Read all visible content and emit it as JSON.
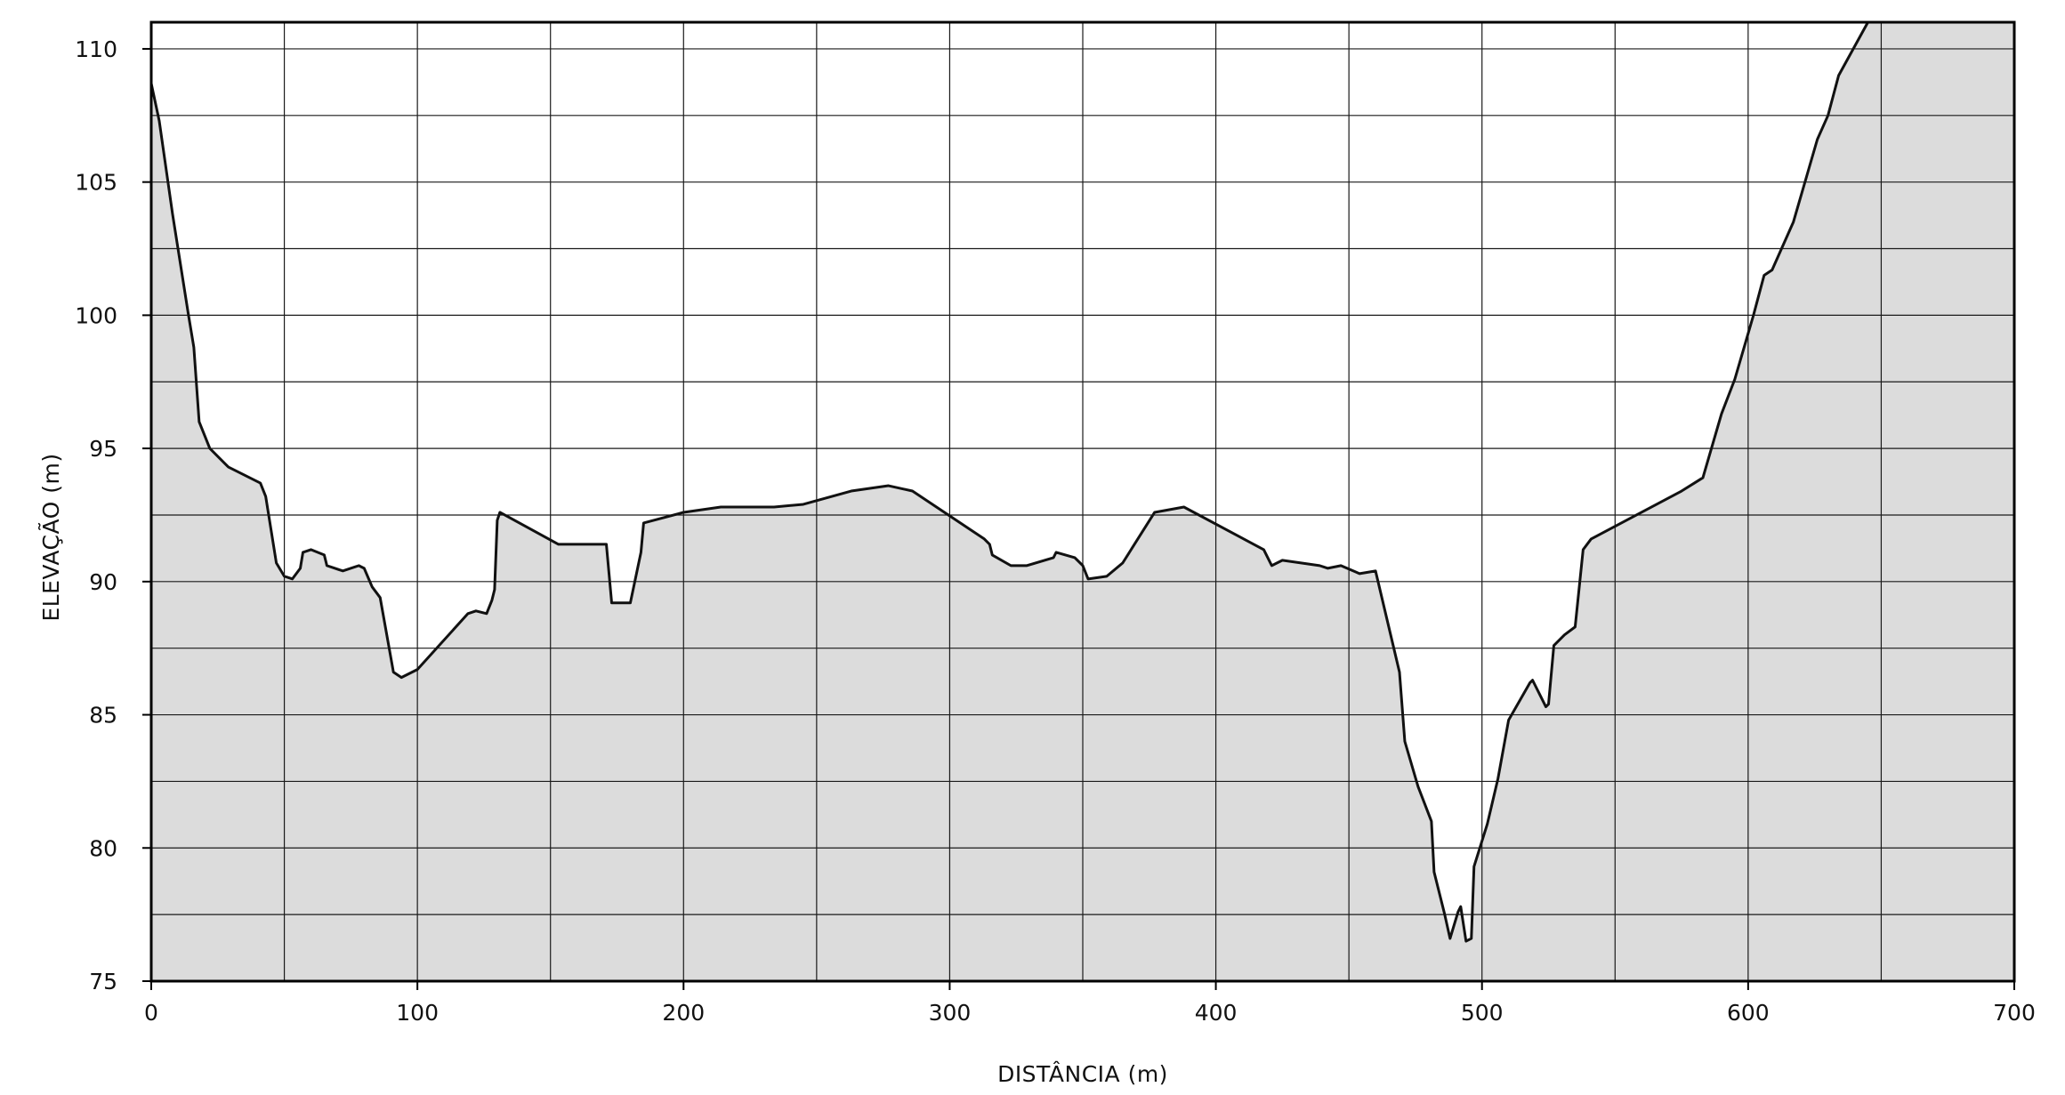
{
  "chart_data": {
    "type": "area",
    "title": "",
    "xlabel": "DISTÂNCIA  (m)",
    "ylabel": "ELEVAÇÃO  (m)",
    "xlim": [
      0,
      700
    ],
    "ylim": [
      75,
      111
    ],
    "x_ticks": [
      0,
      100,
      200,
      300,
      400,
      500,
      600,
      700
    ],
    "y_ticks": [
      75,
      80,
      85,
      90,
      95,
      100,
      105,
      110
    ],
    "x_tick_labels": [
      "0",
      "100",
      "200",
      "300",
      "400",
      "500",
      "600",
      "700"
    ],
    "y_tick_labels": [
      "75",
      "80",
      "85",
      "90",
      "95",
      "100",
      "105",
      "110"
    ],
    "x_grid_step": 50,
    "y_grid_step": 2.5,
    "grid": true,
    "legend": false,
    "colors": {
      "fill": "#dcdcdc",
      "line": "#111111",
      "grid": "#1a1a1a",
      "frame": "#000000"
    },
    "series": [
      {
        "x": [
          0,
          3,
          8,
          14,
          16,
          18,
          22,
          29,
          41,
          43,
          47,
          50,
          53,
          56,
          57,
          60,
          65,
          66,
          72,
          78,
          80,
          83,
          86,
          91,
          94,
          100,
          119,
          122,
          126,
          128,
          129,
          130,
          131,
          153,
          171,
          172,
          173,
          180,
          184,
          185,
          200,
          214,
          234,
          245,
          263,
          277,
          286,
          313,
          315,
          316,
          323,
          329,
          339,
          340,
          347,
          350,
          352,
          359,
          365,
          377,
          388,
          418,
          421,
          425,
          439,
          442,
          447,
          454,
          460,
          469,
          471,
          476,
          481,
          482,
          486,
          488,
          491,
          492,
          494,
          496,
          497,
          502,
          506,
          510,
          518,
          519,
          522,
          524,
          525,
          527,
          531,
          535,
          538,
          541,
          575,
          583,
          590,
          595,
          602,
          606,
          609,
          617,
          626,
          630,
          634,
          645
        ],
        "y": [
          108.7,
          107.3,
          103.8,
          100.0,
          98.8,
          96.0,
          95.0,
          94.3,
          93.7,
          93.2,
          90.7,
          90.2,
          90.1,
          90.5,
          91.1,
          91.2,
          91.0,
          90.6,
          90.4,
          90.6,
          90.5,
          89.8,
          89.4,
          86.6,
          86.4,
          86.7,
          88.8,
          88.9,
          88.8,
          89.3,
          89.7,
          92.3,
          92.6,
          91.4,
          91.4,
          90.3,
          89.2,
          89.2,
          91.1,
          92.2,
          92.6,
          92.8,
          92.8,
          92.9,
          93.4,
          93.6,
          93.4,
          91.6,
          91.4,
          91.0,
          90.6,
          90.6,
          90.9,
          91.1,
          90.9,
          90.6,
          90.1,
          90.2,
          90.7,
          92.6,
          92.8,
          91.2,
          90.6,
          90.8,
          90.6,
          90.5,
          90.6,
          90.3,
          90.4,
          86.6,
          84.0,
          82.3,
          81.0,
          79.1,
          77.5,
          76.6,
          77.6,
          77.8,
          76.5,
          76.6,
          79.3,
          80.9,
          82.6,
          84.8,
          86.2,
          86.3,
          85.7,
          85.3,
          85.4,
          87.6,
          88.0,
          88.3,
          91.2,
          91.6,
          93.4,
          93.9,
          96.3,
          97.6,
          100.0,
          101.5,
          101.7,
          103.5,
          106.6,
          107.5,
          109.0,
          111.0
        ]
      }
    ]
  }
}
